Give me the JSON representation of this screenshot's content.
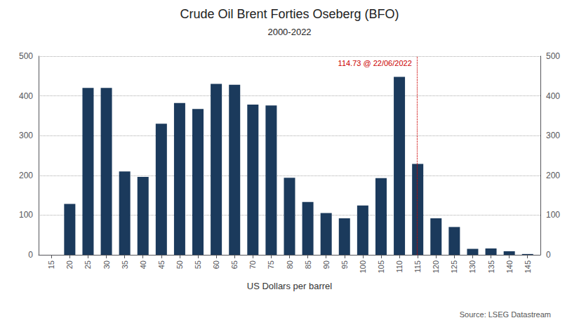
{
  "chart_data": {
    "type": "bar",
    "title": "Crude Oil Brent Forties Oseberg (BFO)",
    "subtitle": "2000-2022",
    "xlabel": "US Dollars per barrel",
    "source": "Source: LSEG Datastream",
    "annotations": [
      {
        "text": "114.73 @ 22/06/2022",
        "x": 114.73,
        "color": "#cc0000",
        "line_style": "dotted"
      }
    ],
    "x": [
      15,
      20,
      25,
      30,
      35,
      40,
      45,
      50,
      55,
      60,
      65,
      70,
      75,
      80,
      85,
      90,
      95,
      100,
      105,
      110,
      115,
      120,
      125,
      130,
      135,
      140,
      145
    ],
    "values": [
      0,
      128,
      420,
      420,
      210,
      196,
      330,
      382,
      367,
      430,
      428,
      378,
      376,
      194,
      133,
      105,
      92,
      124,
      193,
      448,
      229,
      92,
      70,
      15,
      16,
      9,
      2
    ],
    "color": "#1b3a5c",
    "xlim": [
      11.5,
      148.5
    ],
    "xticks": [
      15,
      20,
      25,
      30,
      35,
      40,
      45,
      50,
      55,
      60,
      65,
      70,
      75,
      80,
      85,
      90,
      95,
      100,
      105,
      110,
      115,
      120,
      125,
      130,
      135,
      140,
      145
    ],
    "ylim": [
      0,
      500
    ],
    "yticks": [
      0,
      100,
      200,
      300,
      400,
      500
    ],
    "y2lim": [
      0,
      500
    ],
    "y2ticks": [
      0,
      100,
      200,
      300,
      400,
      500
    ],
    "grid": true
  }
}
